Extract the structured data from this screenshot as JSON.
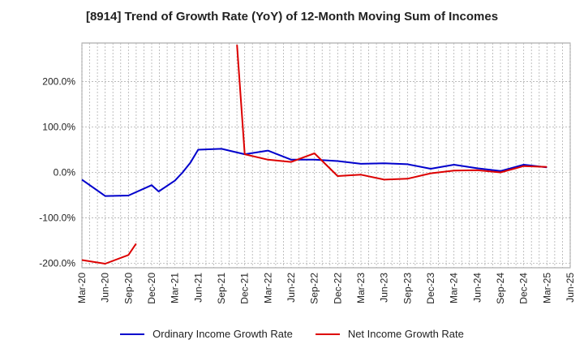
{
  "chart_data": {
    "type": "line",
    "title": "[8914]  Trend of Growth Rate (YoY) of 12-Month Moving Sum of Incomes",
    "xlabel": "",
    "ylabel": "",
    "x_tick_labels": [
      "Mar-20",
      "Jun-20",
      "Sep-20",
      "Dec-20",
      "Mar-21",
      "Jun-21",
      "Sep-21",
      "Dec-21",
      "Mar-22",
      "Jun-22",
      "Sep-22",
      "Dec-22",
      "Mar-23",
      "Jun-23",
      "Sep-23",
      "Dec-23",
      "Mar-24",
      "Jun-24",
      "Sep-24",
      "Dec-24",
      "Mar-25",
      "Jun-25"
    ],
    "y_ticks": [
      -200,
      -100,
      0,
      100,
      200
    ],
    "y_tick_labels": [
      "-200.0%",
      "-100.0%",
      "0.0%",
      "100.0%",
      "200.0%"
    ],
    "ylim": [
      -210,
      285
    ],
    "grid": true,
    "legend_placement": "bottom",
    "series": [
      {
        "name": "Ordinary Income Growth Rate",
        "color": "#0000cc",
        "values": [
          -16,
          -52,
          -51,
          -28,
          -18,
          50,
          52,
          40,
          48,
          28,
          28,
          25,
          19,
          20,
          18,
          8,
          17,
          9,
          3,
          17,
          11,
          null
        ],
        "extra_points": [
          [
            3.3,
            -42
          ],
          [
            4.33,
            0
          ],
          [
            4.67,
            22
          ]
        ]
      },
      {
        "name": "Net Income Growth Rate",
        "color": "#dd0000",
        "values": [
          -193,
          -201,
          -182,
          null,
          null,
          null,
          null,
          40,
          28,
          23,
          42,
          -8,
          -5,
          -16,
          -14,
          -2,
          4,
          5,
          0,
          14,
          12,
          null
        ],
        "extra_points": [
          [
            2.33,
            -157
          ],
          [
            6.67,
            281
          ]
        ]
      }
    ]
  }
}
